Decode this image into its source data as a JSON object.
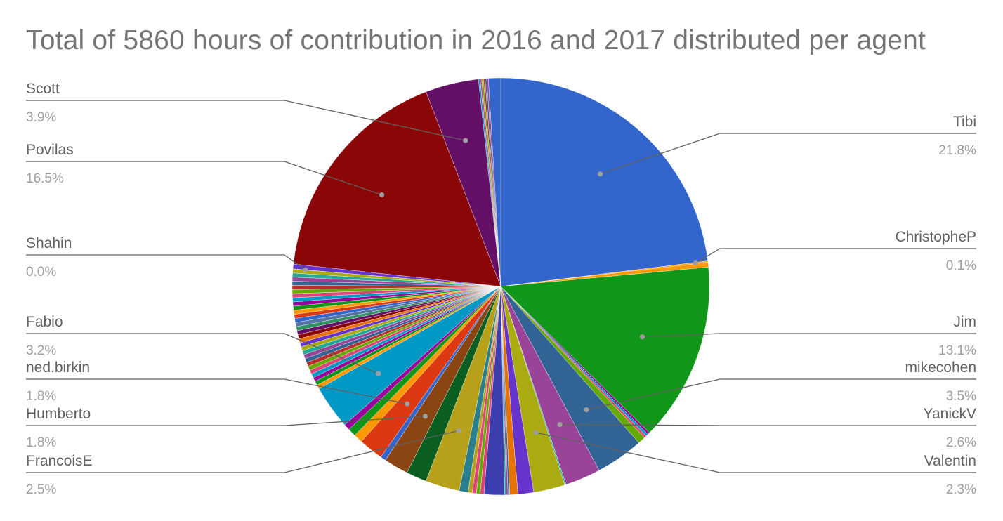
{
  "chart_data": {
    "type": "pie",
    "title": "Total of 5860 hours of contribution in 2016 and 2017 distributed per agent",
    "legend": "none",
    "labeled_slices": [
      {
        "name": "Tibi",
        "value": 21.8,
        "value_label": "21.8%",
        "color": "#3366cc"
      },
      {
        "name": "ChristopheP",
        "value": 0.1,
        "value_label": "0.1%",
        "color": "#ff9900"
      },
      {
        "name": "Jim",
        "value": 13.1,
        "value_label": "13.1%",
        "color": "#109618"
      },
      {
        "name": "mikecohen",
        "value": 3.5,
        "value_label": "3.5%",
        "color": "#316395"
      },
      {
        "name": "YanickV",
        "value": 2.6,
        "value_label": "2.6%",
        "color": "#994499"
      },
      {
        "name": "Valentin",
        "value": 2.3,
        "value_label": "2.3%",
        "color": "#aaaa11"
      },
      {
        "name": "FrancoisE",
        "value": 2.5,
        "value_label": "2.5%",
        "color": "#b8a11a"
      },
      {
        "name": "Humberto",
        "value": 1.8,
        "value_label": "1.8%",
        "color": "#8b4513"
      },
      {
        "name": "ned.birkin",
        "value": 1.8,
        "value_label": "1.8%",
        "color": "#dc3912"
      },
      {
        "name": "Fabio",
        "value": 3.2,
        "value_label": "3.2%",
        "color": "#0099c6"
      },
      {
        "name": "Shahin",
        "value": 0.0,
        "value_label": "0.0%",
        "color": "#6633cc"
      },
      {
        "name": "Povilas",
        "value": 16.5,
        "value_label": "16.5%",
        "color": "#8b0707"
      },
      {
        "name": "Scott",
        "value": 3.9,
        "value_label": "3.9%",
        "color": "#651067"
      }
    ]
  }
}
